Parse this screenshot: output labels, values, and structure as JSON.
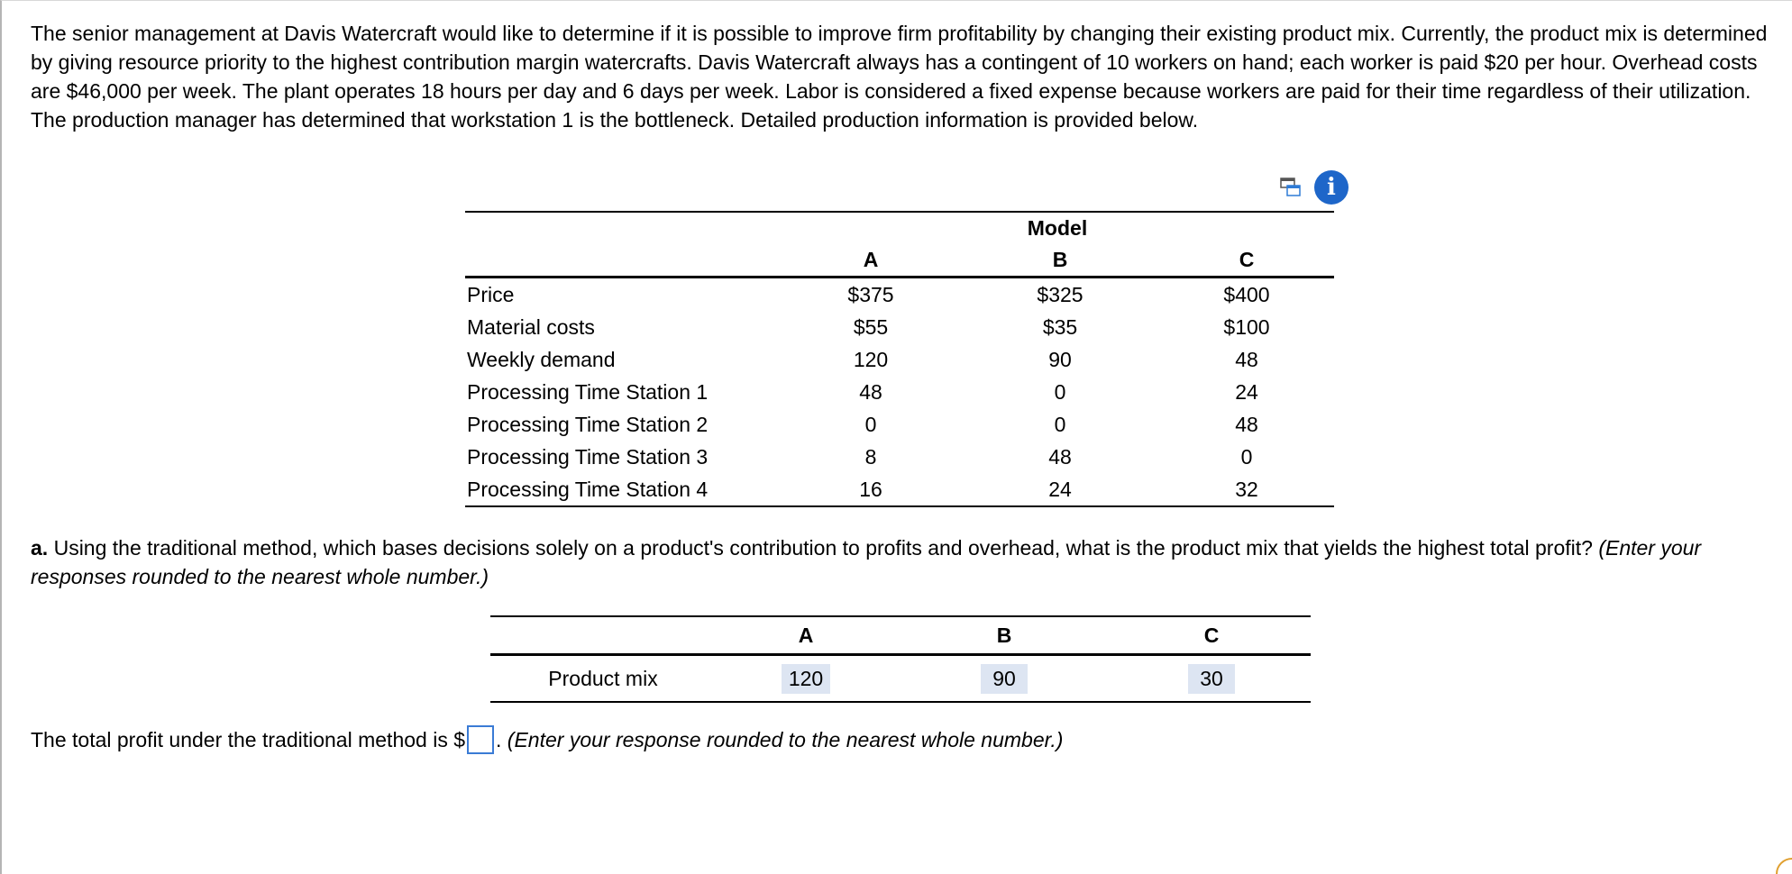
{
  "intro_text": "The senior management at Davis Watercraft would like to determine if it is possible to improve firm profitability by changing their existing product mix. Currently, the product mix is determined by giving resource priority to the highest contribution margin watercrafts. Davis Watercraft always has a contingent of 10 workers on hand; each worker is paid $20 per hour. Overhead costs are $46,000 per week. The plant operates 18 hours per day and 6 days per week. Labor is considered a fixed expense because workers are paid for their time regardless of their utilization. The production manager has determined that workstation 1 is the bottleneck. Detailed production information is provided below.",
  "icons": {
    "copy": "copy-icon",
    "info": "info-icon",
    "info_glyph": "i",
    "accent": "#1e66c9"
  },
  "data_table": {
    "group_header": "Model",
    "columns": [
      "A",
      "B",
      "C"
    ],
    "rows": [
      {
        "label": "Price",
        "values": [
          "$375",
          "$325",
          "$400"
        ]
      },
      {
        "label": "Material costs",
        "values": [
          "$55",
          "$35",
          "$100"
        ]
      },
      {
        "label": "Weekly demand",
        "values": [
          "120",
          "90",
          "48"
        ]
      },
      {
        "label": "Processing Time Station 1",
        "values": [
          "48",
          "0",
          "24"
        ]
      },
      {
        "label": "Processing Time Station 2",
        "values": [
          "0",
          "0",
          "48"
        ]
      },
      {
        "label": "Processing Time Station 3",
        "values": [
          "8",
          "48",
          "0"
        ]
      },
      {
        "label": "Processing Time Station 4",
        "values": [
          "16",
          "24",
          "32"
        ]
      }
    ]
  },
  "question_a": {
    "label": "a.",
    "text": " Using the traditional method, which bases decisions solely on a product's contribution to profits and overhead, what is the product mix that yields the highest total profit? ",
    "hint": "(Enter your responses rounded to the nearest whole number.)"
  },
  "answer_table": {
    "columns": [
      "A",
      "B",
      "C"
    ],
    "row_label": "Product mix",
    "values": [
      "120",
      "90",
      "30"
    ]
  },
  "total_profit": {
    "prefix": "The total profit under the traditional method is $",
    "value": "",
    "suffix": ". ",
    "hint": "(Enter your response rounded to the nearest whole number.)"
  }
}
